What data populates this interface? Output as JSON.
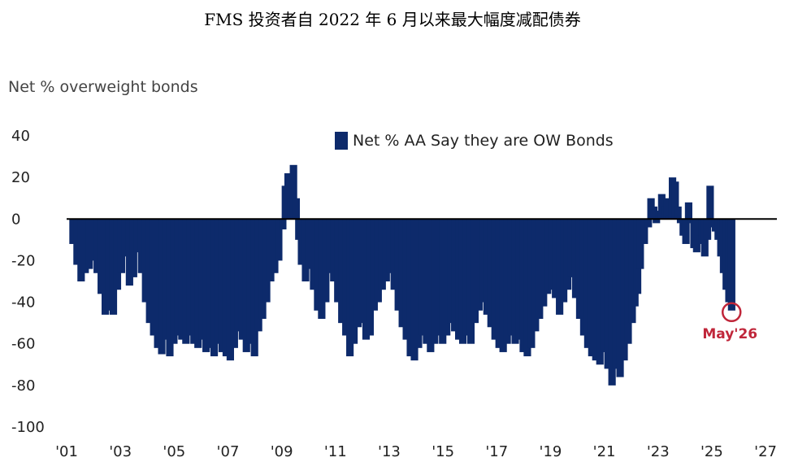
{
  "chart_data": {
    "type": "bar",
    "title": "FMS 投资者自 2022 年 6 月以来最大幅度减配债券",
    "ylabel": "Net % overweight bonds",
    "xlabel": "",
    "ylim": [
      -100,
      40
    ],
    "yticks": [
      40,
      20,
      0,
      -20,
      -40,
      -60,
      -80,
      -100
    ],
    "xlim": [
      2001.0,
      2027.3
    ],
    "xticks": [
      {
        "year": 2001,
        "label": "'01"
      },
      {
        "year": 2003,
        "label": "'03"
      },
      {
        "year": 2005,
        "label": "'05"
      },
      {
        "year": 2007,
        "label": "'07"
      },
      {
        "year": 2009,
        "label": "'09"
      },
      {
        "year": 2011,
        "label": "'11"
      },
      {
        "year": 2013,
        "label": "'13"
      },
      {
        "year": 2015,
        "label": "'15"
      },
      {
        "year": 2017,
        "label": "'17"
      },
      {
        "year": 2019,
        "label": "'19"
      },
      {
        "year": 2021,
        "label": "'21"
      },
      {
        "year": 2023,
        "label": "'23"
      },
      {
        "year": 2025,
        "label": "'25"
      },
      {
        "year": 2027,
        "label": "'27"
      }
    ],
    "grid": false,
    "legend_position": "top-right",
    "colors": {
      "bar": "#0d2a6b",
      "annotation": "#c0263a",
      "zero_line": "#000000"
    },
    "series": [
      {
        "name": "Net % AA Say they are OW Bonds",
        "points": [
          [
            2001.1,
            -12
          ],
          [
            2001.25,
            -22
          ],
          [
            2001.4,
            -30
          ],
          [
            2001.55,
            -26
          ],
          [
            2001.7,
            -24
          ],
          [
            2001.85,
            -20
          ],
          [
            2002.0,
            -26
          ],
          [
            2002.15,
            -36
          ],
          [
            2002.3,
            -46
          ],
          [
            2002.45,
            -44
          ],
          [
            2002.6,
            -46
          ],
          [
            2002.75,
            -34
          ],
          [
            2002.9,
            -26
          ],
          [
            2003.05,
            -18
          ],
          [
            2003.2,
            -32
          ],
          [
            2003.35,
            -28
          ],
          [
            2003.5,
            -16
          ],
          [
            2003.65,
            -26
          ],
          [
            2003.8,
            -40
          ],
          [
            2003.95,
            -50
          ],
          [
            2004.1,
            -56
          ],
          [
            2004.25,
            -62
          ],
          [
            2004.4,
            -65
          ],
          [
            2004.55,
            -58
          ],
          [
            2004.7,
            -66
          ],
          [
            2004.85,
            -60
          ],
          [
            2005.0,
            -56
          ],
          [
            2005.15,
            -58
          ],
          [
            2005.3,
            -60
          ],
          [
            2005.45,
            -56
          ],
          [
            2005.6,
            -60
          ],
          [
            2005.75,
            -62
          ],
          [
            2005.9,
            -58
          ],
          [
            2006.05,
            -64
          ],
          [
            2006.2,
            -62
          ],
          [
            2006.35,
            -66
          ],
          [
            2006.5,
            -60
          ],
          [
            2006.65,
            -64
          ],
          [
            2006.8,
            -66
          ],
          [
            2006.95,
            -68
          ],
          [
            2007.1,
            -62
          ],
          [
            2007.25,
            -54
          ],
          [
            2007.4,
            -58
          ],
          [
            2007.55,
            -64
          ],
          [
            2007.7,
            -60
          ],
          [
            2007.85,
            -66
          ],
          [
            2008.0,
            -54
          ],
          [
            2008.15,
            -48
          ],
          [
            2008.3,
            -40
          ],
          [
            2008.45,
            -30
          ],
          [
            2008.6,
            -26
          ],
          [
            2008.75,
            -20
          ],
          [
            2008.9,
            -5
          ],
          [
            2009.0,
            16
          ],
          [
            2009.1,
            22
          ],
          [
            2009.2,
            10
          ],
          [
            2009.3,
            26
          ],
          [
            2009.4,
            10
          ],
          [
            2009.5,
            -10
          ],
          [
            2009.6,
            -22
          ],
          [
            2009.75,
            -30
          ],
          [
            2009.9,
            -24
          ],
          [
            2010.05,
            -34
          ],
          [
            2010.2,
            -44
          ],
          [
            2010.35,
            -48
          ],
          [
            2010.5,
            -40
          ],
          [
            2010.65,
            -26
          ],
          [
            2010.8,
            -30
          ],
          [
            2010.95,
            -40
          ],
          [
            2011.1,
            -50
          ],
          [
            2011.25,
            -56
          ],
          [
            2011.4,
            -66
          ],
          [
            2011.55,
            -60
          ],
          [
            2011.7,
            -52
          ],
          [
            2011.85,
            -50
          ],
          [
            2012.0,
            -58
          ],
          [
            2012.15,
            -56
          ],
          [
            2012.3,
            -44
          ],
          [
            2012.45,
            -40
          ],
          [
            2012.6,
            -34
          ],
          [
            2012.75,
            -30
          ],
          [
            2012.9,
            -26
          ],
          [
            2013.05,
            -34
          ],
          [
            2013.2,
            -44
          ],
          [
            2013.35,
            -52
          ],
          [
            2013.5,
            -58
          ],
          [
            2013.65,
            -66
          ],
          [
            2013.8,
            -68
          ],
          [
            2013.95,
            -62
          ],
          [
            2014.1,
            -56
          ],
          [
            2014.25,
            -60
          ],
          [
            2014.4,
            -64
          ],
          [
            2014.55,
            -60
          ],
          [
            2014.7,
            -56
          ],
          [
            2014.85,
            -60
          ],
          [
            2015.0,
            -56
          ],
          [
            2015.15,
            -50
          ],
          [
            2015.3,
            -54
          ],
          [
            2015.45,
            -58
          ],
          [
            2015.6,
            -60
          ],
          [
            2015.75,
            -56
          ],
          [
            2015.9,
            -60
          ],
          [
            2016.05,
            -50
          ],
          [
            2016.2,
            -44
          ],
          [
            2016.35,
            -40
          ],
          [
            2016.5,
            -46
          ],
          [
            2016.65,
            -52
          ],
          [
            2016.8,
            -58
          ],
          [
            2016.95,
            -62
          ],
          [
            2017.1,
            -64
          ],
          [
            2017.25,
            -60
          ],
          [
            2017.4,
            -56
          ],
          [
            2017.55,
            -60
          ],
          [
            2017.7,
            -58
          ],
          [
            2017.85,
            -64
          ],
          [
            2018.0,
            -66
          ],
          [
            2018.15,
            -62
          ],
          [
            2018.3,
            -54
          ],
          [
            2018.45,
            -48
          ],
          [
            2018.6,
            -42
          ],
          [
            2018.75,
            -36
          ],
          [
            2018.9,
            -34
          ],
          [
            2019.05,
            -38
          ],
          [
            2019.2,
            -46
          ],
          [
            2019.35,
            -40
          ],
          [
            2019.5,
            -34
          ],
          [
            2019.65,
            -28
          ],
          [
            2019.8,
            -38
          ],
          [
            2019.95,
            -48
          ],
          [
            2020.1,
            -56
          ],
          [
            2020.25,
            -62
          ],
          [
            2020.4,
            -66
          ],
          [
            2020.55,
            -68
          ],
          [
            2020.7,
            -70
          ],
          [
            2020.85,
            -64
          ],
          [
            2021.0,
            -72
          ],
          [
            2021.15,
            -80
          ],
          [
            2021.3,
            -72
          ],
          [
            2021.45,
            -76
          ],
          [
            2021.6,
            -68
          ],
          [
            2021.75,
            -60
          ],
          [
            2021.9,
            -50
          ],
          [
            2022.0,
            -42
          ],
          [
            2022.1,
            -36
          ],
          [
            2022.2,
            -24
          ],
          [
            2022.35,
            -12
          ],
          [
            2022.5,
            -4
          ],
          [
            2022.6,
            10
          ],
          [
            2022.7,
            6
          ],
          [
            2022.8,
            -2
          ],
          [
            2022.9,
            4
          ],
          [
            2023.0,
            12
          ],
          [
            2023.1,
            6
          ],
          [
            2023.2,
            10
          ],
          [
            2023.3,
            2
          ],
          [
            2023.4,
            20
          ],
          [
            2023.5,
            18
          ],
          [
            2023.6,
            6
          ],
          [
            2023.7,
            -2
          ],
          [
            2023.8,
            -8
          ],
          [
            2023.9,
            -12
          ],
          [
            2024.0,
            8
          ],
          [
            2024.1,
            -2
          ],
          [
            2024.2,
            -14
          ],
          [
            2024.3,
            -16
          ],
          [
            2024.4,
            -8
          ],
          [
            2024.5,
            -12
          ],
          [
            2024.6,
            -18
          ],
          [
            2024.7,
            -10
          ],
          [
            2024.8,
            16
          ],
          [
            2024.9,
            -4
          ],
          [
            2025.0,
            -6
          ],
          [
            2025.1,
            -10
          ],
          [
            2025.2,
            -18
          ],
          [
            2025.3,
            -26
          ],
          [
            2025.4,
            -34
          ],
          [
            2025.5,
            -40
          ],
          [
            2025.6,
            -44
          ]
        ]
      }
    ],
    "annotation": {
      "x": 2025.6,
      "y": -44,
      "label": "May'26"
    }
  }
}
